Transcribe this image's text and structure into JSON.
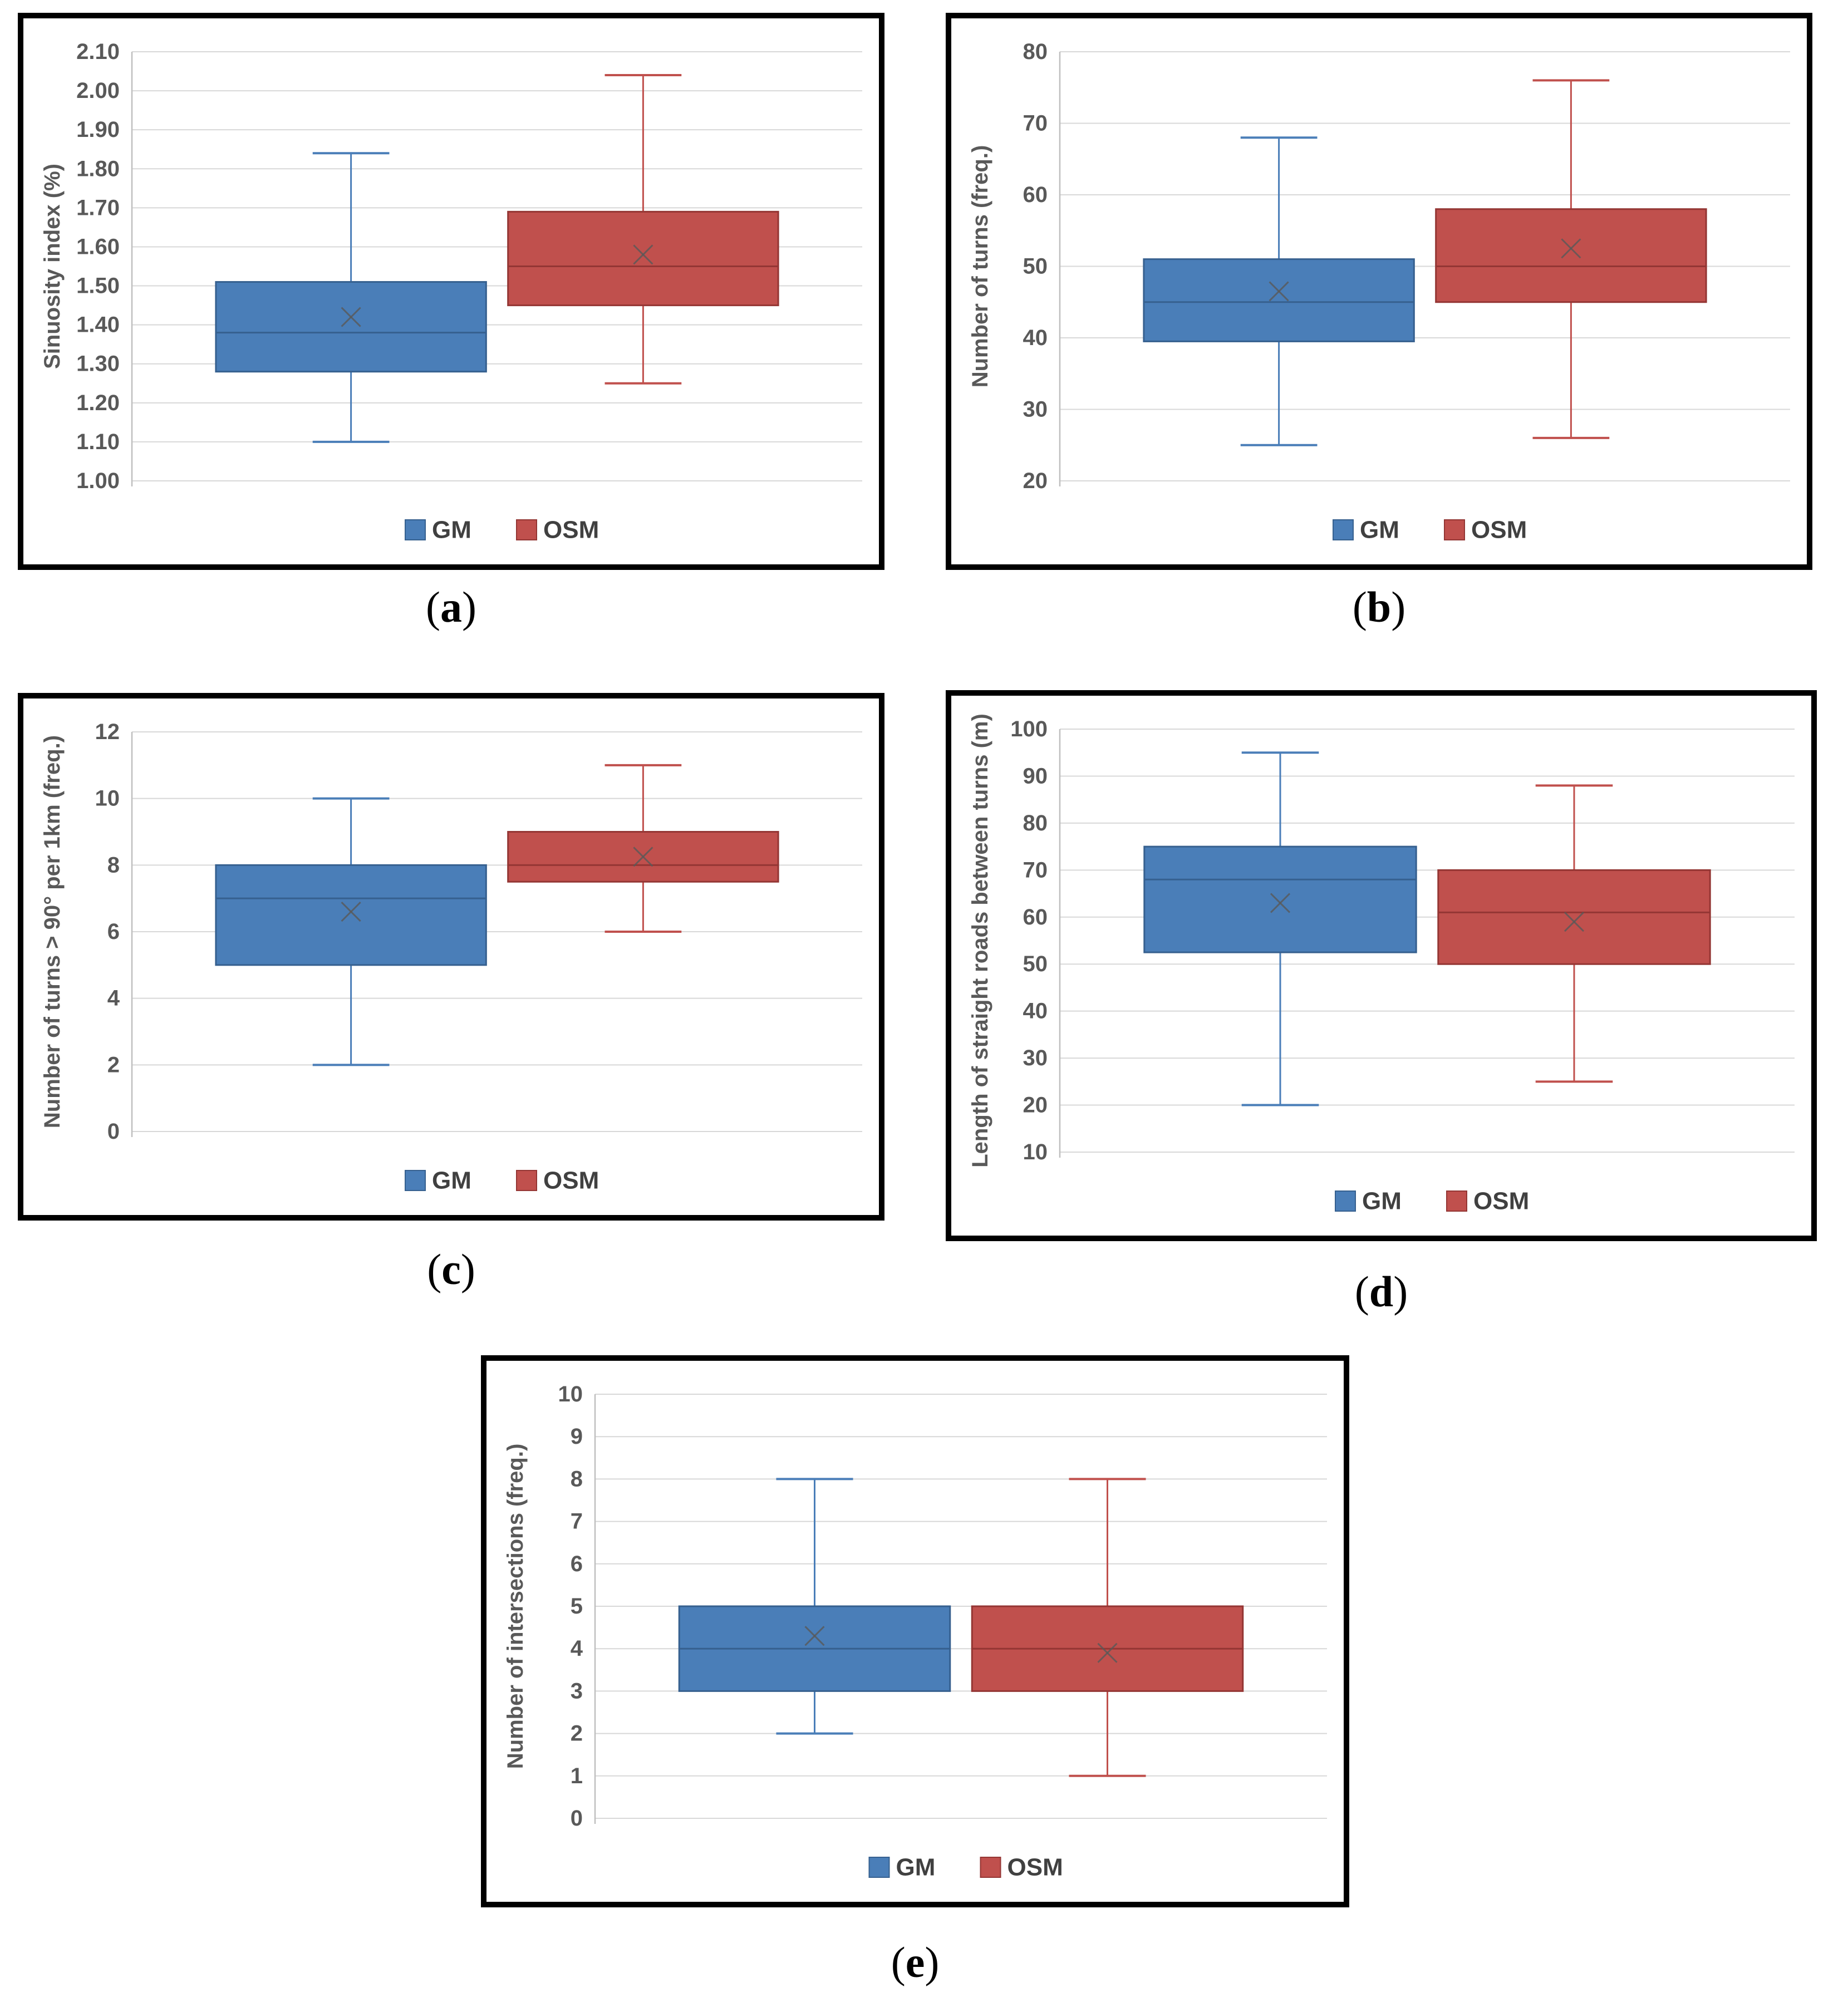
{
  "figure": {
    "background": "#FFFFFF",
    "panel_border_color": "#000000"
  },
  "colors": {
    "gm_fill": "#4A7EB8",
    "gm_border": "#36608F",
    "osm_fill": "#C0504D",
    "osm_border": "#943634",
    "gridline": "#D8D8D8",
    "axis_line": "#BFBFBF",
    "tick_text": "#595959",
    "legend_text": "#404040",
    "mean_marker": "#595959"
  },
  "captions": [
    {
      "open": "(",
      "letter": "a",
      "close": ")"
    },
    {
      "open": "(",
      "letter": "b",
      "close": ")"
    },
    {
      "open": "(",
      "letter": "c",
      "close": ")"
    },
    {
      "open": "(",
      "letter": "d",
      "close": ")"
    },
    {
      "open": "(",
      "letter": "e",
      "close": ")"
    }
  ],
  "chart_data": [
    {
      "type": "boxplot",
      "panel": "a",
      "title": "",
      "xlabel": "",
      "ylabel": "Sinuosity index (%)",
      "ylim": [
        1.0,
        2.1
      ],
      "grid": true,
      "legend_position": "bottom",
      "legend": [
        "GM",
        "OSM"
      ],
      "ytick_values": [
        1.0,
        1.1,
        1.2,
        1.3,
        1.4,
        1.5,
        1.6,
        1.7,
        1.8,
        1.9,
        2.0,
        2.1
      ],
      "ytick_labels": [
        "1.00",
        "1.10",
        "1.20",
        "1.30",
        "1.40",
        "1.50",
        "1.60",
        "1.70",
        "1.80",
        "1.90",
        "2.00",
        "2.10"
      ],
      "series": [
        {
          "name": "GM",
          "fill": "#4A7EB8",
          "border": "#36608F",
          "whisker_low": 1.1,
          "q1": 1.28,
          "median": 1.38,
          "mean": 1.42,
          "q3": 1.51,
          "whisker_high": 1.84
        },
        {
          "name": "OSM",
          "fill": "#C0504D",
          "border": "#943634",
          "whisker_low": 1.25,
          "q1": 1.45,
          "median": 1.55,
          "mean": 1.58,
          "q3": 1.69,
          "whisker_high": 2.04
        }
      ]
    },
    {
      "type": "boxplot",
      "panel": "b",
      "title": "",
      "xlabel": "",
      "ylabel": "Number of turns (freq.)",
      "ylim": [
        20,
        80
      ],
      "grid": true,
      "legend_position": "bottom",
      "legend": [
        "GM",
        "OSM"
      ],
      "ytick_values": [
        20,
        30,
        40,
        50,
        60,
        70,
        80
      ],
      "ytick_labels": [
        "20",
        "30",
        "40",
        "50",
        "60",
        "70",
        "80"
      ],
      "series": [
        {
          "name": "GM",
          "fill": "#4A7EB8",
          "border": "#36608F",
          "whisker_low": 25,
          "q1": 39.5,
          "median": 45,
          "mean": 46.5,
          "q3": 51,
          "whisker_high": 68
        },
        {
          "name": "OSM",
          "fill": "#C0504D",
          "border": "#943634",
          "whisker_low": 26,
          "q1": 45,
          "median": 50,
          "mean": 52.5,
          "q3": 58,
          "whisker_high": 76
        }
      ]
    },
    {
      "type": "boxplot",
      "panel": "c",
      "title": "",
      "xlabel": "",
      "ylabel": "Number of turns > 90° per 1km (freq.)",
      "ylim": [
        0,
        12
      ],
      "grid": true,
      "legend_position": "bottom",
      "legend": [
        "GM",
        "OSM"
      ],
      "ytick_values": [
        0,
        2,
        4,
        6,
        8,
        10,
        12
      ],
      "ytick_labels": [
        "0",
        "2",
        "4",
        "6",
        "8",
        "10",
        "12"
      ],
      "series": [
        {
          "name": "GM",
          "fill": "#4A7EB8",
          "border": "#36608F",
          "whisker_low": 2,
          "q1": 5,
          "median": 7,
          "mean": 6.6,
          "q3": 8,
          "whisker_high": 10
        },
        {
          "name": "OSM",
          "fill": "#C0504D",
          "border": "#943634",
          "whisker_low": 6,
          "q1": 7.5,
          "median": 8,
          "mean": 8.25,
          "q3": 9,
          "whisker_high": 11
        }
      ]
    },
    {
      "type": "boxplot",
      "panel": "d",
      "title": "",
      "xlabel": "",
      "ylabel": "Length of straight roads between turns (m)",
      "ylim": [
        10,
        100
      ],
      "grid": true,
      "legend_position": "bottom",
      "legend": [
        "GM",
        "OSM"
      ],
      "ytick_values": [
        10,
        20,
        30,
        40,
        50,
        60,
        70,
        80,
        90,
        100
      ],
      "ytick_labels": [
        "10",
        "20",
        "30",
        "40",
        "50",
        "60",
        "70",
        "80",
        "90",
        "100"
      ],
      "series": [
        {
          "name": "GM",
          "fill": "#4A7EB8",
          "border": "#36608F",
          "whisker_low": 20,
          "q1": 52.5,
          "median": 68,
          "mean": 63,
          "q3": 75,
          "whisker_high": 95
        },
        {
          "name": "OSM",
          "fill": "#C0504D",
          "border": "#943634",
          "whisker_low": 25,
          "q1": 50,
          "median": 61,
          "mean": 59,
          "q3": 70,
          "whisker_high": 88
        }
      ]
    },
    {
      "type": "boxplot",
      "panel": "e",
      "title": "",
      "xlabel": "",
      "ylabel": "Number of intersections (freq.)",
      "ylim": [
        0,
        10
      ],
      "grid": true,
      "legend_position": "bottom",
      "legend": [
        "GM",
        "OSM"
      ],
      "ytick_values": [
        0,
        1,
        2,
        3,
        4,
        5,
        6,
        7,
        8,
        9,
        10
      ],
      "ytick_labels": [
        "0",
        "1",
        "2",
        "3",
        "4",
        "5",
        "6",
        "7",
        "8",
        "9",
        "10"
      ],
      "series": [
        {
          "name": "GM",
          "fill": "#4A7EB8",
          "border": "#36608F",
          "whisker_low": 2,
          "q1": 3,
          "median": 4,
          "mean": 4.3,
          "q3": 5,
          "whisker_high": 8
        },
        {
          "name": "OSM",
          "fill": "#C0504D",
          "border": "#943634",
          "whisker_low": 1,
          "q1": 3,
          "median": 4,
          "mean": 3.9,
          "q3": 5,
          "whisker_high": 8
        }
      ]
    }
  ]
}
